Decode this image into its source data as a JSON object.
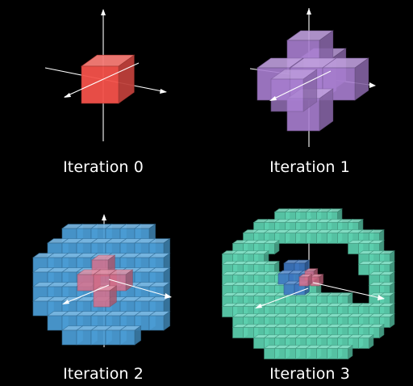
{
  "panels": [
    {
      "caption": "Iteration 0",
      "color": "#f4524a"
    },
    {
      "caption": "Iteration 1",
      "color": "#a97fd1"
    },
    {
      "caption": "Iteration 2",
      "color": "#4c9fd8"
    },
    {
      "caption": "Iteration 3",
      "color": "#5fd6b4"
    }
  ],
  "seed_color": "#d8708c",
  "inner_blue_color": "#3f79c4",
  "background": "#000000"
}
